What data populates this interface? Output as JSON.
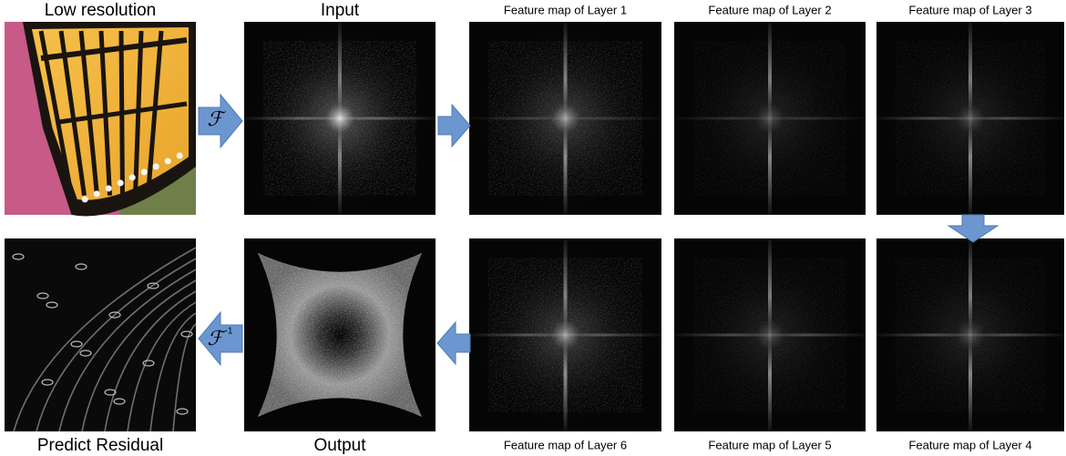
{
  "top_row": [
    {
      "label": "Low resolution"
    },
    {
      "label": "Input"
    },
    {
      "label": "Feature map of Layer 1"
    },
    {
      "label": "Feature map of Layer 2"
    },
    {
      "label": "Feature map of Layer 3"
    }
  ],
  "bottom_row": [
    {
      "label": "Predict Residual"
    },
    {
      "label": "Output"
    },
    {
      "label": "Feature map of Layer 6"
    },
    {
      "label": "Feature map of Layer 5"
    },
    {
      "label": "Feature map of Layer 4"
    }
  ],
  "operators": {
    "forward": "ℱ",
    "inverse": "ℱ",
    "inverse_exponent": "-1"
  }
}
